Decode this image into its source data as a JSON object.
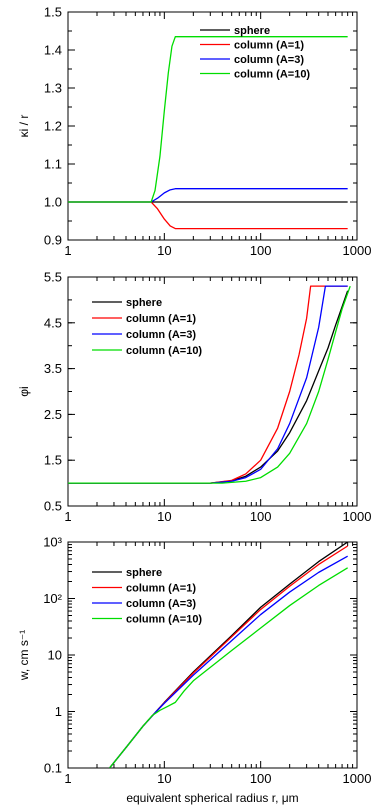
{
  "chart_data": [
    {
      "type": "line",
      "ylabel": "κi / r",
      "xscale": "log",
      "xlim": [
        1,
        1000
      ],
      "ylim": [
        0.9,
        1.5
      ],
      "xticks": [
        {
          "v": 1,
          "label": "1"
        },
        {
          "v": 10,
          "label": "10"
        },
        {
          "v": 100,
          "label": "100"
        },
        {
          "v": 1000,
          "label": "1000"
        }
      ],
      "yticks": [
        {
          "v": 0.9,
          "label": "0.9"
        },
        {
          "v": 1.0,
          "label": "1.0"
        },
        {
          "v": 1.1,
          "label": "1.1"
        },
        {
          "v": 1.2,
          "label": "1.2"
        },
        {
          "v": 1.3,
          "label": "1.3"
        },
        {
          "v": 1.4,
          "label": "1.4"
        },
        {
          "v": 1.5,
          "label": "1.5"
        }
      ],
      "legend": "upper-right",
      "series": [
        {
          "name": "sphere",
          "color": "#000000",
          "points": [
            [
              1,
              1.0
            ],
            [
              800,
              1.0
            ]
          ]
        },
        {
          "name": "column (A=1)",
          "color": "#ff0000",
          "points": [
            [
              1,
              1.0
            ],
            [
              7.3,
              1.0
            ],
            [
              8.5,
              0.982
            ],
            [
              10,
              0.955
            ],
            [
              11.5,
              0.937
            ],
            [
              13,
              0.93
            ],
            [
              800,
              0.93
            ]
          ]
        },
        {
          "name": "column (A=3)",
          "color": "#0000ff",
          "points": [
            [
              1,
              1.0
            ],
            [
              7.3,
              1.0
            ],
            [
              8.5,
              1.01
            ],
            [
              10,
              1.024
            ],
            [
              11.5,
              1.032
            ],
            [
              13,
              1.035
            ],
            [
              800,
              1.035
            ]
          ]
        },
        {
          "name": "column (A=10)",
          "color": "#00dd00",
          "points": [
            [
              1,
              1.0
            ],
            [
              7.3,
              1.0
            ],
            [
              8,
              1.03
            ],
            [
              9,
              1.12
            ],
            [
              10,
              1.24
            ],
            [
              11,
              1.34
            ],
            [
              12,
              1.41
            ],
            [
              13,
              1.435
            ],
            [
              800,
              1.435
            ]
          ]
        }
      ]
    },
    {
      "type": "line",
      "ylabel": "φi",
      "xscale": "log",
      "xlim": [
        1,
        1000
      ],
      "ylim": [
        0.5,
        5.5
      ],
      "xticks": [
        {
          "v": 1,
          "label": "1"
        },
        {
          "v": 10,
          "label": "10"
        },
        {
          "v": 100,
          "label": "100"
        },
        {
          "v": 1000,
          "label": "1000"
        }
      ],
      "yticks": [
        {
          "v": 0.5,
          "label": "0.5"
        },
        {
          "v": 1.5,
          "label": "1.5"
        },
        {
          "v": 2.5,
          "label": "2.5"
        },
        {
          "v": 3.5,
          "label": "3.5"
        },
        {
          "v": 4.5,
          "label": "4.5"
        },
        {
          "v": 5.5,
          "label": "5.5"
        }
      ],
      "legend": "upper-left",
      "series": [
        {
          "name": "sphere",
          "color": "#000000",
          "points": [
            [
              1,
              1.0
            ],
            [
              30,
              1.0
            ],
            [
              50,
              1.05
            ],
            [
              70,
              1.15
            ],
            [
              100,
              1.35
            ],
            [
              150,
              1.7
            ],
            [
              200,
              2.1
            ],
            [
              300,
              2.8
            ],
            [
              400,
              3.45
            ],
            [
              500,
              3.95
            ],
            [
              600,
              4.45
            ],
            [
              700,
              4.85
            ],
            [
              800,
              5.2
            ]
          ]
        },
        {
          "name": "column (A=1)",
          "color": "#ff0000",
          "points": [
            [
              1,
              1.0
            ],
            [
              30,
              1.0
            ],
            [
              50,
              1.06
            ],
            [
              70,
              1.2
            ],
            [
              100,
              1.5
            ],
            [
              150,
              2.2
            ],
            [
              200,
              3.0
            ],
            [
              250,
              3.8
            ],
            [
              300,
              4.6
            ],
            [
              330,
              5.3
            ],
            [
              800,
              5.3
            ]
          ]
        },
        {
          "name": "column (A=3)",
          "color": "#0000ff",
          "points": [
            [
              1,
              1.0
            ],
            [
              30,
              1.0
            ],
            [
              50,
              1.04
            ],
            [
              70,
              1.12
            ],
            [
              100,
              1.3
            ],
            [
              150,
              1.75
            ],
            [
              200,
              2.3
            ],
            [
              300,
              3.3
            ],
            [
              400,
              4.4
            ],
            [
              470,
              5.3
            ],
            [
              800,
              5.3
            ]
          ]
        },
        {
          "name": "column (A=10)",
          "color": "#00dd00",
          "points": [
            [
              1,
              1.0
            ],
            [
              40,
              1.0
            ],
            [
              70,
              1.04
            ],
            [
              100,
              1.12
            ],
            [
              150,
              1.35
            ],
            [
              200,
              1.65
            ],
            [
              300,
              2.3
            ],
            [
              400,
              3.0
            ],
            [
              500,
              3.7
            ],
            [
              600,
              4.3
            ],
            [
              700,
              4.8
            ],
            [
              850,
              5.3
            ]
          ]
        }
      ]
    },
    {
      "type": "line",
      "xlabel": "equivalent spherical radius r, μm",
      "ylabel": "w, cm s⁻¹",
      "xscale": "log",
      "yscale": "log",
      "xlim": [
        1,
        1000
      ],
      "ylim": [
        0.1,
        1000
      ],
      "xticks": [
        {
          "v": 1,
          "label": "1"
        },
        {
          "v": 10,
          "label": "10"
        },
        {
          "v": 100,
          "label": "100"
        },
        {
          "v": 1000,
          "label": "1000"
        }
      ],
      "yticks": [
        {
          "v": 0.1,
          "label": "0.1"
        },
        {
          "v": 1,
          "label": "1"
        },
        {
          "v": 10,
          "label": "10"
        },
        {
          "v": 100,
          "label": "10²"
        },
        {
          "v": 1000,
          "label": "10³"
        }
      ],
      "legend": "upper-left",
      "series": [
        {
          "name": "sphere",
          "color": "#000000",
          "points": [
            [
              2.7,
              0.1
            ],
            [
              4,
              0.23
            ],
            [
              6,
              0.55
            ],
            [
              8,
              0.95
            ],
            [
              10,
              1.45
            ],
            [
              20,
              5.0
            ],
            [
              50,
              22
            ],
            [
              100,
              70
            ],
            [
              200,
              180
            ],
            [
              400,
              450
            ],
            [
              800,
              1000
            ]
          ]
        },
        {
          "name": "column (A=1)",
          "color": "#ff0000",
          "points": [
            [
              2.7,
              0.1
            ],
            [
              4,
              0.23
            ],
            [
              6,
              0.55
            ],
            [
              8,
              0.95
            ],
            [
              10,
              1.43
            ],
            [
              20,
              4.8
            ],
            [
              50,
              21
            ],
            [
              100,
              64
            ],
            [
              200,
              165
            ],
            [
              400,
              400
            ],
            [
              800,
              850
            ]
          ]
        },
        {
          "name": "column (A=3)",
          "color": "#0000ff",
          "points": [
            [
              2.7,
              0.1
            ],
            [
              4,
              0.23
            ],
            [
              6,
              0.55
            ],
            [
              8,
              0.95
            ],
            [
              10,
              1.4
            ],
            [
              20,
              4.4
            ],
            [
              50,
              18
            ],
            [
              100,
              52
            ],
            [
              200,
              130
            ],
            [
              400,
              290
            ],
            [
              800,
              560
            ]
          ]
        },
        {
          "name": "column (A=10)",
          "color": "#00dd00",
          "points": [
            [
              2.7,
              0.1
            ],
            [
              4,
              0.23
            ],
            [
              6,
              0.55
            ],
            [
              7.5,
              0.85
            ],
            [
              9,
              1.05
            ],
            [
              11,
              1.25
            ],
            [
              13,
              1.45
            ],
            [
              16,
              2.3
            ],
            [
              20,
              3.5
            ],
            [
              50,
              12
            ],
            [
              100,
              30
            ],
            [
              200,
              75
            ],
            [
              400,
              170
            ],
            [
              800,
              350
            ]
          ]
        }
      ]
    }
  ]
}
